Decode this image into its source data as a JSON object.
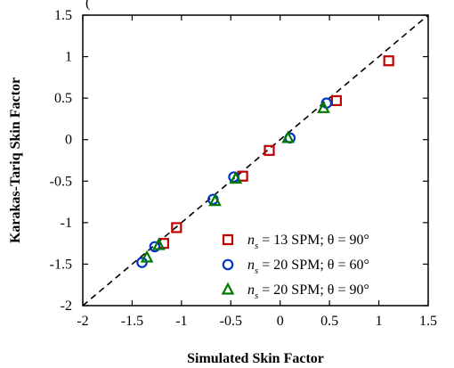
{
  "chart_data": {
    "type": "scatter",
    "title_fragment": "(",
    "xlabel": "Simulated Skin Factor",
    "ylabel": "Karakas-Tariq Skin Factor",
    "xlim": [
      -2,
      1.5
    ],
    "ylim": [
      -2,
      1.5
    ],
    "x_ticks": [
      "-2",
      "-1.5",
      "-1",
      "-0.5",
      "0",
      "0.5",
      "1",
      "1.5"
    ],
    "y_ticks": [
      "-2",
      "-1.5",
      "-1",
      "-0.5",
      "0",
      "0.5",
      "1",
      "1.5"
    ],
    "x_tick_values": [
      -2,
      -1.5,
      -1,
      -0.5,
      0,
      0.5,
      1,
      1.5
    ],
    "y_tick_values": [
      -2,
      -1.5,
      -1,
      -0.5,
      0,
      0.5,
      1,
      1.5
    ],
    "reference_line": {
      "style": "dashed",
      "from": [
        -2,
        -2
      ],
      "to": [
        1.5,
        1.5
      ]
    },
    "legend_position": "bottom-right",
    "series": [
      {
        "name": "n_s = 13 SPM; θ = 90°",
        "legend_parts": {
          "var": "n",
          "sub": "s",
          "rest": " = 13 SPM; θ = 90°"
        },
        "marker": "square",
        "color": "#c00000",
        "points": [
          {
            "x": -1.18,
            "y": -1.25
          },
          {
            "x": -1.05,
            "y": -1.06
          },
          {
            "x": -0.38,
            "y": -0.44
          },
          {
            "x": -0.11,
            "y": -0.13
          },
          {
            "x": 0.57,
            "y": 0.47
          },
          {
            "x": 1.1,
            "y": 0.95
          }
        ]
      },
      {
        "name": "n_s = 20 SPM; θ = 60°",
        "legend_parts": {
          "var": "n",
          "sub": "s",
          "rest": " = 20 SPM; θ = 60°"
        },
        "marker": "circle",
        "color": "#0033cc",
        "points": [
          {
            "x": -1.4,
            "y": -1.48
          },
          {
            "x": -1.27,
            "y": -1.29
          },
          {
            "x": -0.68,
            "y": -0.72
          },
          {
            "x": -0.47,
            "y": -0.45
          },
          {
            "x": 0.1,
            "y": 0.02
          },
          {
            "x": 0.47,
            "y": 0.44
          }
        ]
      },
      {
        "name": "n_s = 20 SPM; θ = 90°",
        "legend_parts": {
          "var": "n",
          "sub": "s",
          "rest": " = 20 SPM; θ = 90°"
        },
        "marker": "triangle",
        "color": "#007a00",
        "points": [
          {
            "x": -1.35,
            "y": -1.42
          },
          {
            "x": -1.23,
            "y": -1.27
          },
          {
            "x": -0.66,
            "y": -0.74
          },
          {
            "x": -0.45,
            "y": -0.47
          },
          {
            "x": 0.08,
            "y": 0.02
          },
          {
            "x": 0.44,
            "y": 0.38
          }
        ]
      }
    ]
  }
}
